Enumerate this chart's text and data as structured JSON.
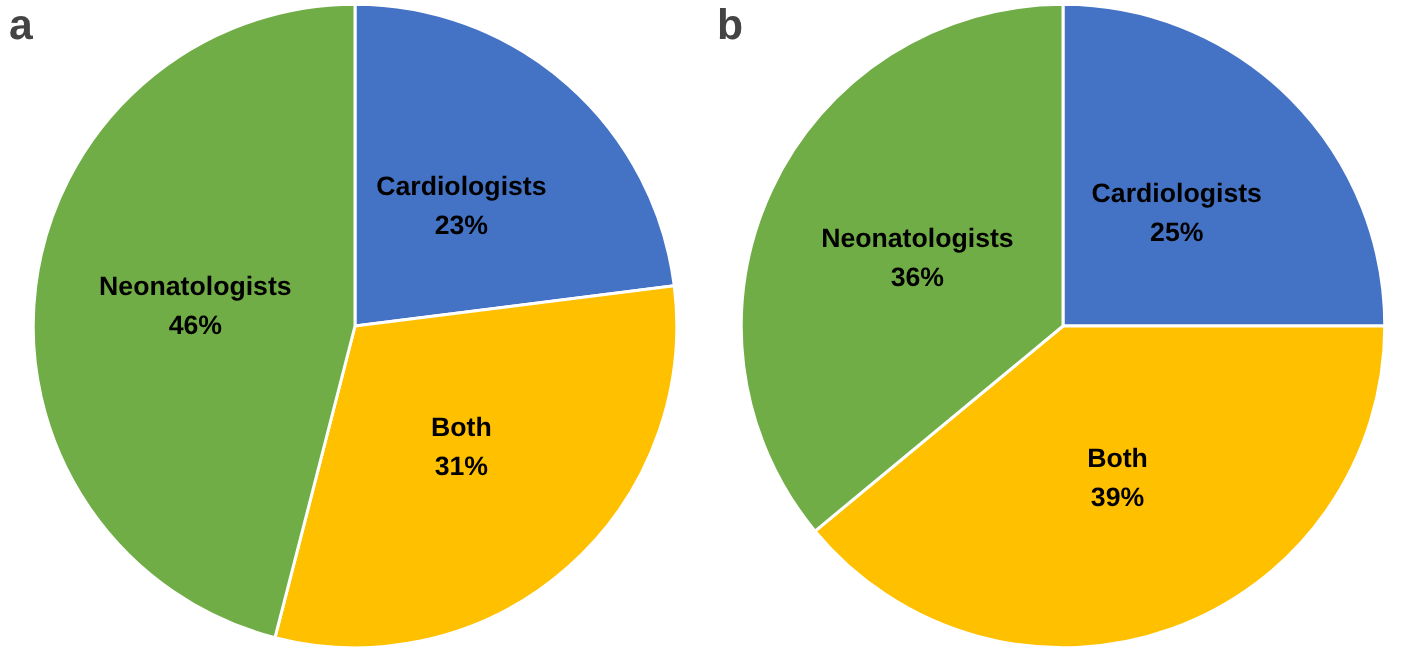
{
  "chart_data": [
    {
      "type": "pie",
      "title": "a",
      "categories": [
        "Cardiologists",
        "Both",
        "Neonatologists"
      ],
      "values": [
        23,
        31,
        46
      ],
      "colors": [
        "#4472c4",
        "#ffc000",
        "#70ad47"
      ],
      "value_labels": [
        "23%",
        "31%",
        "46%"
      ]
    },
    {
      "type": "pie",
      "title": "b",
      "categories": [
        "Cardiologists",
        "Both",
        "Neonatologists"
      ],
      "values": [
        25,
        39,
        36
      ],
      "colors": [
        "#4472c4",
        "#ffc000",
        "#70ad47"
      ],
      "value_labels": [
        "25%",
        "39%",
        "36%"
      ]
    }
  ]
}
